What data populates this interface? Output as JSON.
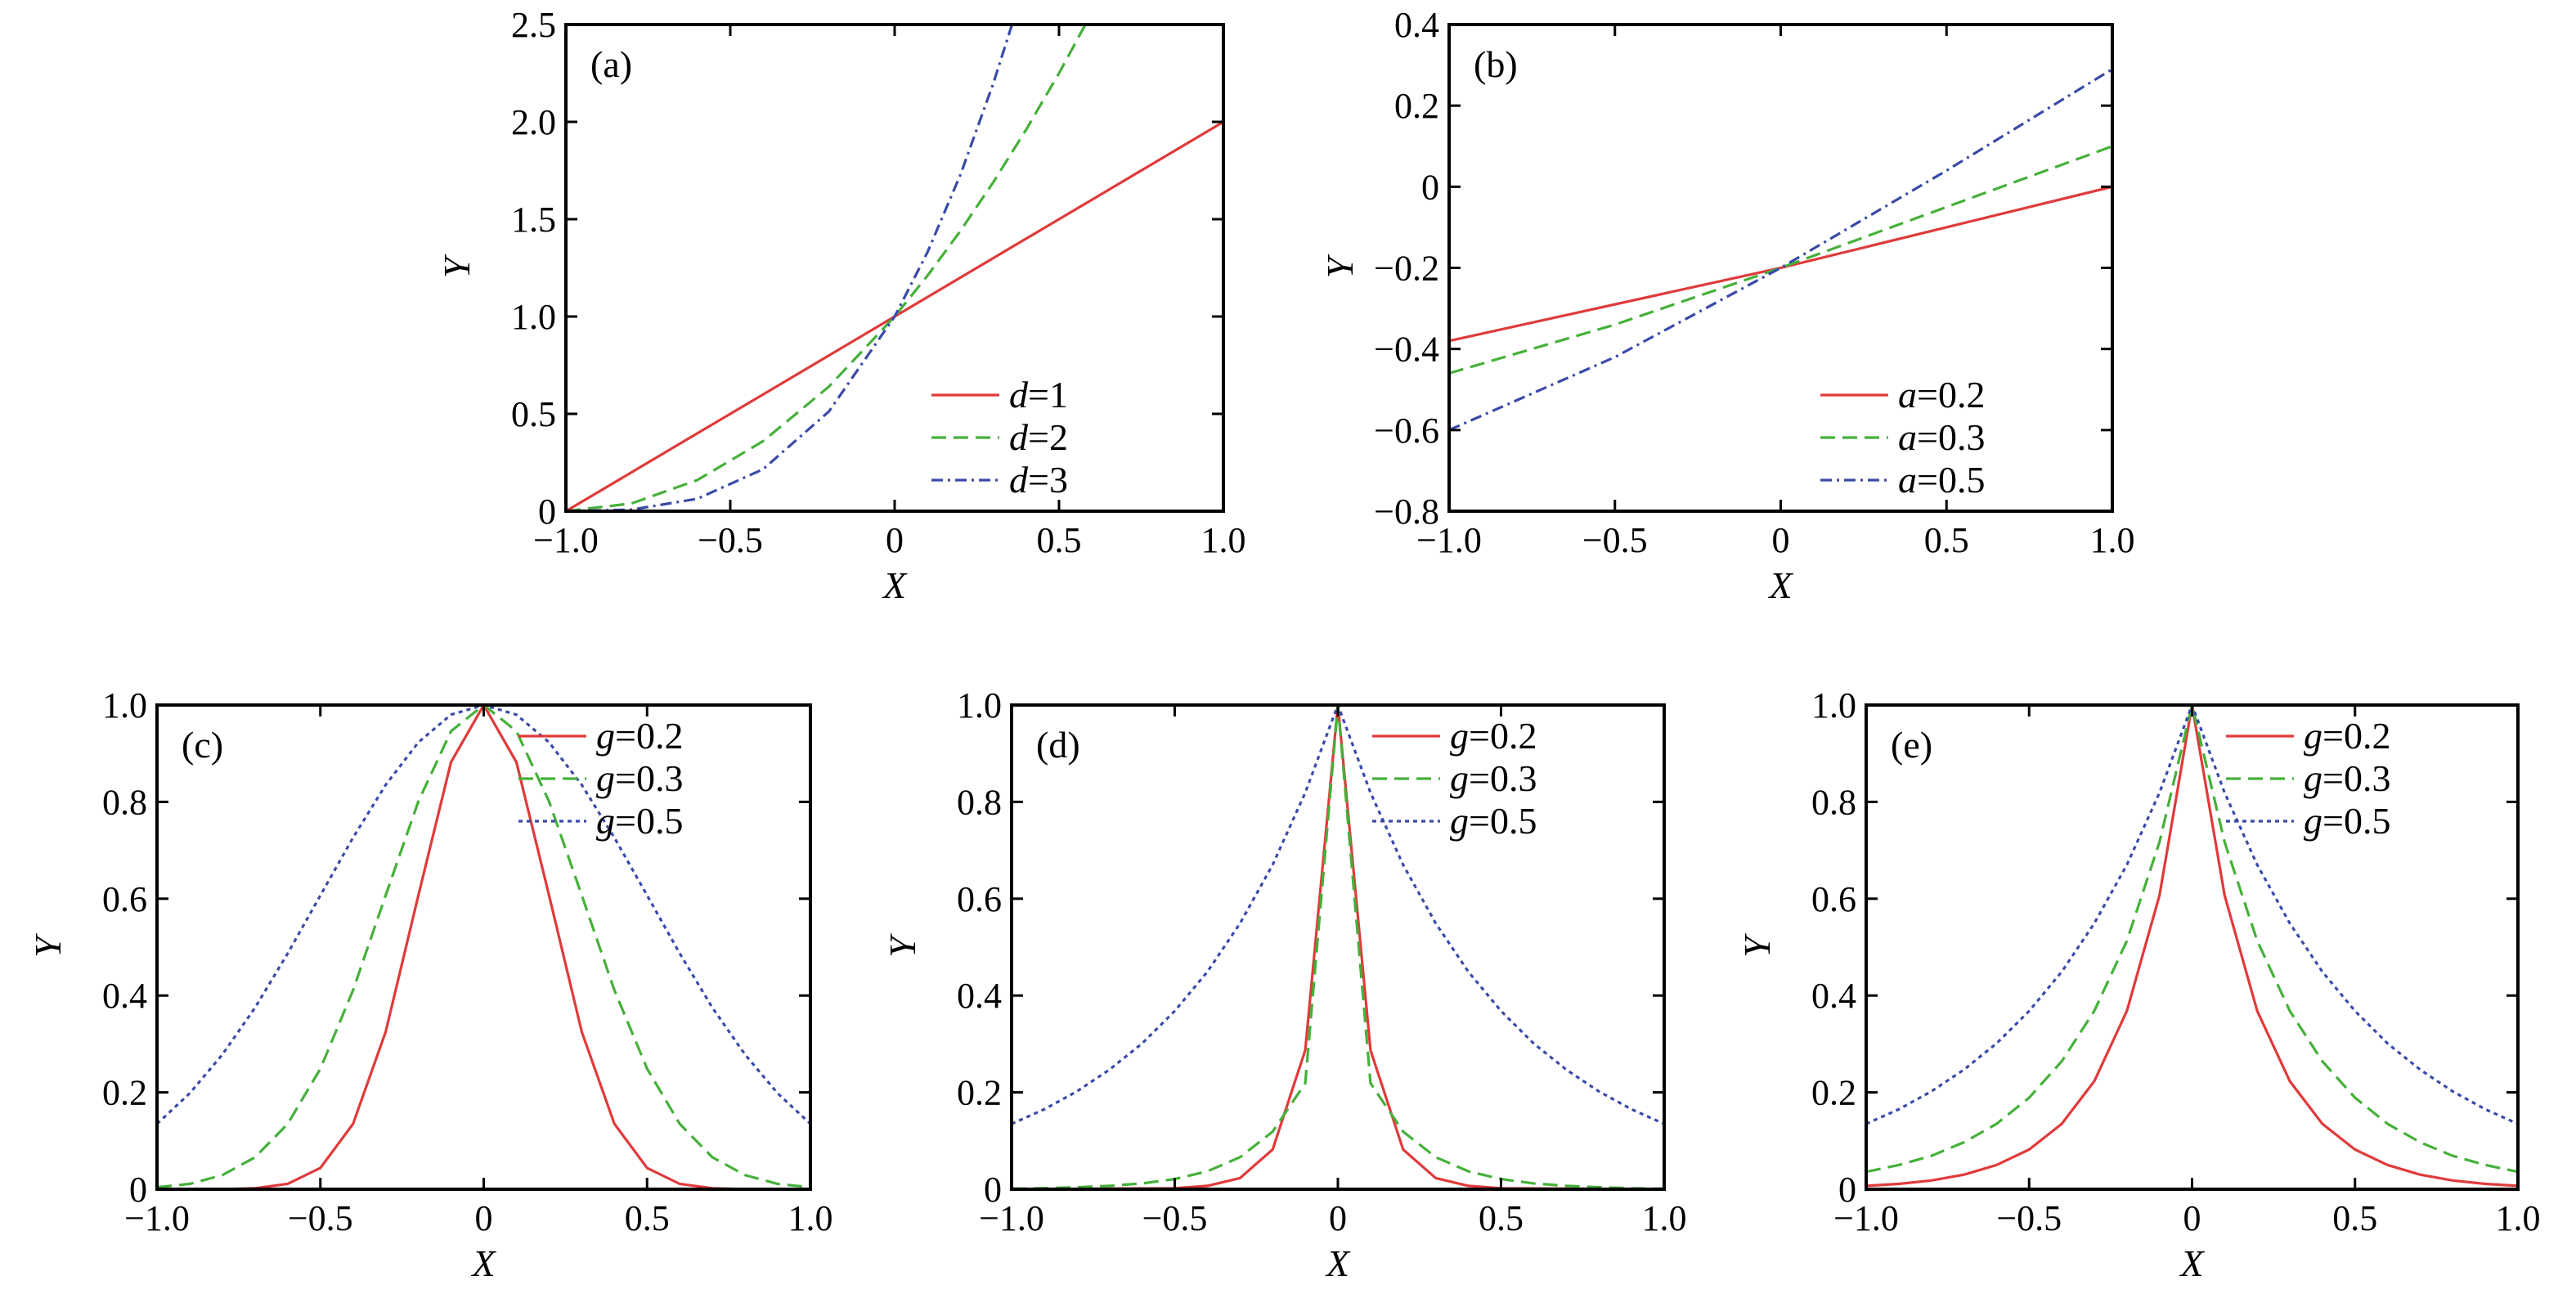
{
  "chart_data": [
    {
      "type": "line",
      "panel_label": "(a)",
      "xlabel": "X",
      "ylabel": "Y",
      "xlim": [
        -1.0,
        1.0
      ],
      "ylim": [
        0,
        2.5
      ],
      "xticks": [
        -1.0,
        -0.5,
        0,
        0.5,
        1.0
      ],
      "xtick_labels": [
        "−1.0",
        "−0.5",
        "0",
        "0.5",
        "1.0"
      ],
      "yticks": [
        0,
        0.5,
        1.0,
        1.5,
        2.0,
        2.5
      ],
      "ytick_labels": [
        "0",
        "0.5",
        "1.0",
        "1.5",
        "2.0",
        "2.5"
      ],
      "legend_position": "bottom-right",
      "series": [
        {
          "legend_var": "d",
          "legend_val": "=1",
          "color": "#e03a3a",
          "dash": "solid",
          "x": [
            -1.0,
            -0.8,
            -0.6,
            -0.4,
            -0.2,
            0,
            0.2,
            0.4,
            0.6,
            0.8,
            1.0
          ],
          "y": [
            0,
            0.2,
            0.4,
            0.6,
            0.8,
            1.0,
            1.2,
            1.4,
            1.6,
            1.8,
            2.0
          ]
        },
        {
          "legend_var": "d",
          "legend_val": "=2",
          "color": "#45b03a",
          "dash": "dashed",
          "x": [
            -1.0,
            -0.8,
            -0.6,
            -0.4,
            -0.2,
            0,
            0.1,
            0.2,
            0.3,
            0.4,
            0.5,
            0.58
          ],
          "y": [
            0,
            0.04,
            0.16,
            0.36,
            0.64,
            1.0,
            1.21,
            1.44,
            1.69,
            1.96,
            2.25,
            2.5
          ]
        },
        {
          "legend_var": "d",
          "legend_val": "=3",
          "color": "#3a4aa8",
          "dash": "dashdot",
          "x": [
            -1.0,
            -0.8,
            -0.6,
            -0.4,
            -0.2,
            0,
            0.1,
            0.2,
            0.3,
            0.357
          ],
          "y": [
            0,
            0.008,
            0.064,
            0.216,
            0.512,
            1.0,
            1.331,
            1.728,
            2.197,
            2.5
          ]
        }
      ]
    },
    {
      "type": "line",
      "panel_label": "(b)",
      "xlabel": "X",
      "ylabel": "Y",
      "xlim": [
        -1.0,
        1.0
      ],
      "ylim": [
        -0.8,
        0.4
      ],
      "xticks": [
        -1.0,
        -0.5,
        0,
        0.5,
        1.0
      ],
      "xtick_labels": [
        "−1.0",
        "−0.5",
        "0",
        "0.5",
        "1.0"
      ],
      "yticks": [
        -0.8,
        -0.6,
        -0.4,
        -0.2,
        0,
        0.2,
        0.4
      ],
      "ytick_labels": [
        "−0.8",
        "−0.6",
        "−0.4",
        "−0.2",
        "0",
        "0.2",
        "0.4"
      ],
      "legend_position": "bottom-right",
      "series": [
        {
          "legend_var": "a",
          "legend_val": "=0.2",
          "color": "#e03a3a",
          "dash": "solid",
          "x": [
            -1.0,
            0,
            1.0
          ],
          "y": [
            -0.38,
            -0.2,
            0.0
          ]
        },
        {
          "legend_var": "a",
          "legend_val": "=0.3",
          "color": "#45b03a",
          "dash": "dashed",
          "x": [
            -1.0,
            -0.5,
            0,
            0.5,
            1.0
          ],
          "y": [
            -0.46,
            -0.34,
            -0.2,
            -0.05,
            0.1
          ]
        },
        {
          "legend_var": "a",
          "legend_val": "=0.5",
          "color": "#3a4aa8",
          "dash": "dashdot",
          "x": [
            -1.0,
            -0.5,
            0,
            0.5,
            1.0
          ],
          "y": [
            -0.6,
            -0.42,
            -0.2,
            0.04,
            0.29
          ]
        }
      ]
    },
    {
      "type": "line",
      "panel_label": "(c)",
      "xlabel": "X",
      "ylabel": "Y",
      "xlim": [
        -1.0,
        1.0
      ],
      "ylim": [
        0,
        1.0
      ],
      "xticks": [
        -1.0,
        -0.5,
        0,
        0.5,
        1.0
      ],
      "xtick_labels": [
        "−1.0",
        "−0.5",
        "0",
        "0.5",
        "1.0"
      ],
      "yticks": [
        0,
        0.2,
        0.4,
        0.6,
        0.8,
        1.0
      ],
      "ytick_labels": [
        "0",
        "0.2",
        "0.4",
        "0.6",
        "0.8",
        "1.0"
      ],
      "legend_position": "top-right",
      "series": [
        {
          "legend_var": "g",
          "legend_val": "=0.2",
          "color": "#e03a3a",
          "dash": "solid",
          "x": [
            -1.0,
            -0.9,
            -0.8,
            -0.7,
            -0.6,
            -0.5,
            -0.4,
            -0.3,
            -0.2,
            -0.1,
            0,
            0.1,
            0.2,
            0.3,
            0.4,
            0.5,
            0.6,
            0.7,
            0.8,
            0.9,
            1.0
          ],
          "y": [
            0,
            0,
            0,
            0.002,
            0.011,
            0.044,
            0.135,
            0.325,
            0.607,
            0.882,
            1.0,
            0.882,
            0.607,
            0.325,
            0.135,
            0.044,
            0.011,
            0.002,
            0,
            0,
            0
          ]
        },
        {
          "legend_var": "g",
          "legend_val": "=0.3",
          "color": "#45b03a",
          "dash": "dashed",
          "x": [
            -1.0,
            -0.9,
            -0.8,
            -0.7,
            -0.6,
            -0.5,
            -0.4,
            -0.3,
            -0.2,
            -0.1,
            0,
            0.1,
            0.2,
            0.3,
            0.4,
            0.5,
            0.6,
            0.7,
            0.8,
            0.9,
            1.0
          ],
          "y": [
            0.004,
            0.011,
            0.029,
            0.066,
            0.135,
            0.249,
            0.411,
            0.607,
            0.801,
            0.946,
            1.0,
            0.946,
            0.801,
            0.607,
            0.411,
            0.249,
            0.135,
            0.066,
            0.029,
            0.011,
            0.004
          ]
        },
        {
          "legend_var": "g",
          "legend_val": "=0.5",
          "color": "#3a4aa8",
          "dash": "dotted",
          "x": [
            -1.0,
            -0.9,
            -0.8,
            -0.7,
            -0.6,
            -0.5,
            -0.4,
            -0.3,
            -0.2,
            -0.1,
            0,
            0.1,
            0.2,
            0.3,
            0.4,
            0.5,
            0.6,
            0.7,
            0.8,
            0.9,
            1.0
          ],
          "y": [
            0.135,
            0.198,
            0.278,
            0.375,
            0.487,
            0.607,
            0.726,
            0.835,
            0.923,
            0.98,
            1.0,
            0.98,
            0.923,
            0.835,
            0.726,
            0.607,
            0.487,
            0.375,
            0.278,
            0.198,
            0.135
          ]
        }
      ]
    },
    {
      "type": "line",
      "panel_label": "(d)",
      "xlabel": "X",
      "ylabel": "Y",
      "xlim": [
        -1.0,
        1.0
      ],
      "ylim": [
        0,
        1.0
      ],
      "xticks": [
        -1.0,
        -0.5,
        0,
        0.5,
        1.0
      ],
      "xtick_labels": [
        "−1.0",
        "−0.5",
        "0",
        "0.5",
        "1.0"
      ],
      "yticks": [
        0,
        0.2,
        0.4,
        0.6,
        0.8,
        1.0
      ],
      "ytick_labels": [
        "0",
        "0.2",
        "0.4",
        "0.6",
        "0.8",
        "1.0"
      ],
      "legend_position": "top-right",
      "series": [
        {
          "legend_var": "g",
          "legend_val": "=0.2",
          "color": "#e03a3a",
          "dash": "solid",
          "x": [
            -1.0,
            -0.5,
            -0.4,
            -0.3,
            -0.2,
            -0.1,
            0,
            0.1,
            0.2,
            0.3,
            0.4,
            0.5,
            1.0
          ],
          "y": [
            0,
            0.002,
            0.007,
            0.023,
            0.082,
            0.287,
            1.0,
            0.287,
            0.082,
            0.023,
            0.007,
            0.002,
            0
          ]
        },
        {
          "legend_var": "g",
          "legend_val": "=0.3",
          "color": "#45b03a",
          "dash": "dashed",
          "x": [
            -1.0,
            -0.9,
            -0.8,
            -0.7,
            -0.6,
            -0.5,
            -0.4,
            -0.3,
            -0.2,
            -0.1,
            0,
            0.1,
            0.2,
            0.3,
            0.4,
            0.5,
            0.6,
            0.7,
            0.8,
            0.9,
            1.0
          ],
          "y": [
            0.001,
            0.002,
            0.004,
            0.007,
            0.012,
            0.021,
            0.037,
            0.066,
            0.119,
            0.219,
            1.0,
            0.219,
            0.119,
            0.066,
            0.037,
            0.021,
            0.012,
            0.007,
            0.004,
            0.002,
            0.001
          ]
        },
        {
          "legend_var": "g",
          "legend_val": "=0.5",
          "color": "#3a4aa8",
          "dash": "dotted",
          "x": [
            -1.0,
            -0.9,
            -0.8,
            -0.7,
            -0.6,
            -0.5,
            -0.4,
            -0.3,
            -0.2,
            -0.1,
            0,
            0.1,
            0.2,
            0.3,
            0.4,
            0.5,
            0.6,
            0.7,
            0.8,
            0.9,
            1.0
          ],
          "y": [
            0.135,
            0.165,
            0.202,
            0.247,
            0.301,
            0.368,
            0.449,
            0.549,
            0.67,
            0.819,
            1.0,
            0.819,
            0.67,
            0.549,
            0.449,
            0.368,
            0.301,
            0.247,
            0.202,
            0.165,
            0.135
          ]
        }
      ]
    },
    {
      "type": "line",
      "panel_label": "(e)",
      "xlabel": "X",
      "ylabel": "Y",
      "xlim": [
        -1.0,
        1.0
      ],
      "ylim": [
        0,
        1.0
      ],
      "xticks": [
        -1.0,
        -0.5,
        0,
        0.5,
        1.0
      ],
      "xtick_labels": [
        "−1.0",
        "−0.5",
        "0",
        "0.5",
        "1.0"
      ],
      "yticks": [
        0,
        0.2,
        0.4,
        0.6,
        0.8,
        1.0
      ],
      "ytick_labels": [
        "0",
        "0.2",
        "0.4",
        "0.6",
        "0.8",
        "1.0"
      ],
      "legend_position": "top-right",
      "series": [
        {
          "legend_var": "g",
          "legend_val": "=0.2",
          "color": "#e03a3a",
          "dash": "solid",
          "x": [
            -1.0,
            -0.9,
            -0.8,
            -0.7,
            -0.6,
            -0.5,
            -0.4,
            -0.3,
            -0.2,
            -0.1,
            0,
            0.1,
            0.2,
            0.3,
            0.4,
            0.5,
            0.6,
            0.7,
            0.8,
            0.9,
            1.0
          ],
          "y": [
            0.007,
            0.011,
            0.018,
            0.03,
            0.05,
            0.082,
            0.135,
            0.223,
            0.368,
            0.607,
            1.0,
            0.607,
            0.368,
            0.223,
            0.135,
            0.082,
            0.05,
            0.03,
            0.018,
            0.011,
            0.007
          ]
        },
        {
          "legend_var": "g",
          "legend_val": "=0.3",
          "color": "#45b03a",
          "dash": "dashed",
          "x": [
            -1.0,
            -0.9,
            -0.8,
            -0.7,
            -0.6,
            -0.5,
            -0.4,
            -0.3,
            -0.2,
            -0.1,
            0,
            0.1,
            0.2,
            0.3,
            0.4,
            0.5,
            0.6,
            0.7,
            0.8,
            0.9,
            1.0
          ],
          "y": [
            0.036,
            0.05,
            0.069,
            0.097,
            0.135,
            0.189,
            0.264,
            0.368,
            0.513,
            0.717,
            1.0,
            0.717,
            0.513,
            0.368,
            0.264,
            0.189,
            0.135,
            0.097,
            0.069,
            0.05,
            0.036
          ]
        },
        {
          "legend_var": "g",
          "legend_val": "=0.5",
          "color": "#3a4aa8",
          "dash": "dotted",
          "x": [
            -1.0,
            -0.9,
            -0.8,
            -0.7,
            -0.6,
            -0.5,
            -0.4,
            -0.3,
            -0.2,
            -0.1,
            0,
            0.1,
            0.2,
            0.3,
            0.4,
            0.5,
            0.6,
            0.7,
            0.8,
            0.9,
            1.0
          ],
          "y": [
            0.135,
            0.165,
            0.202,
            0.247,
            0.301,
            0.368,
            0.449,
            0.549,
            0.67,
            0.819,
            1.0,
            0.819,
            0.67,
            0.549,
            0.449,
            0.368,
            0.301,
            0.247,
            0.202,
            0.165,
            0.135
          ]
        }
      ]
    }
  ]
}
